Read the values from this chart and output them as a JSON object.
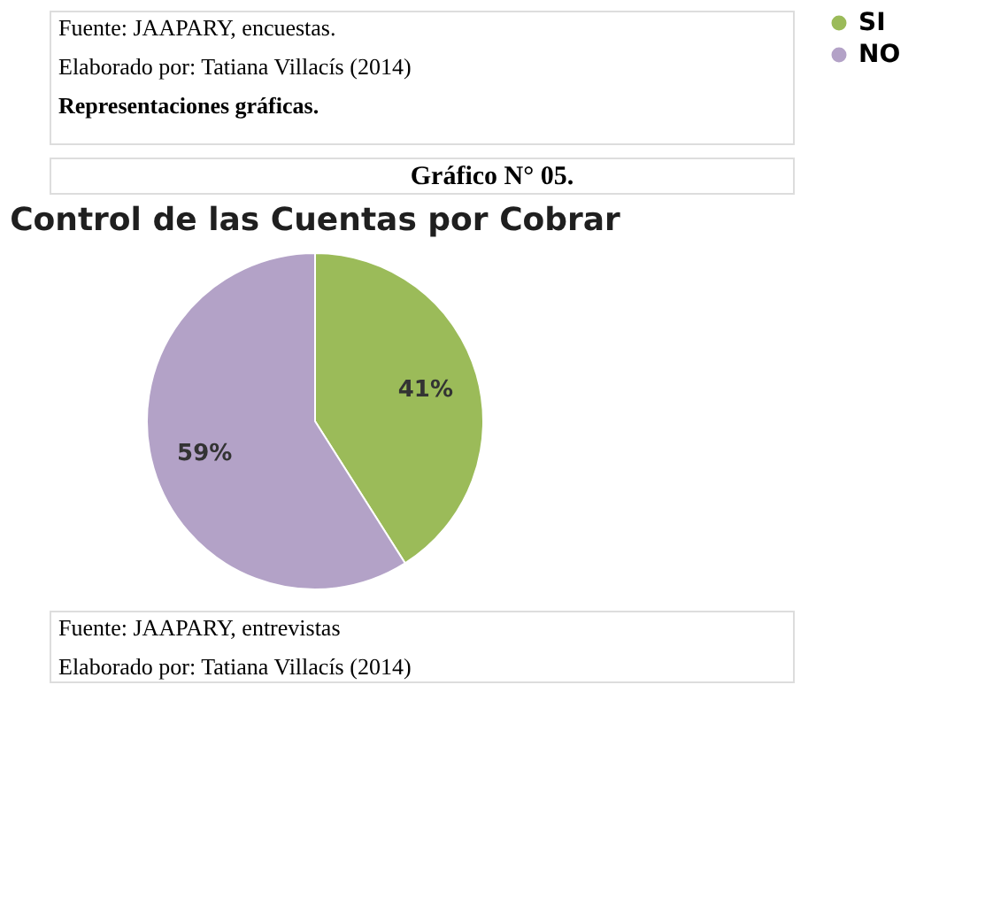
{
  "chart_data": {
    "type": "pie",
    "title": "Control de las Cuentas por Cobrar",
    "subtitle": "Gráfico N° 05.",
    "categories": [
      "SI",
      "NO"
    ],
    "values": [
      41,
      59
    ],
    "colors": [
      "#9bbb59",
      "#b3a2c7"
    ],
    "value_labels": [
      "41%",
      "59%"
    ],
    "legend": "right",
    "annotations": [
      "Fuente: JAAPARY, encuestas.",
      "Elaborado por: Tatiana Villacís (2014)",
      "Representaciones gráficas.",
      "Fuente: JAAPARY, entrevistas",
      "Elaborado por: Tatiana Villacís (2014)"
    ]
  }
}
